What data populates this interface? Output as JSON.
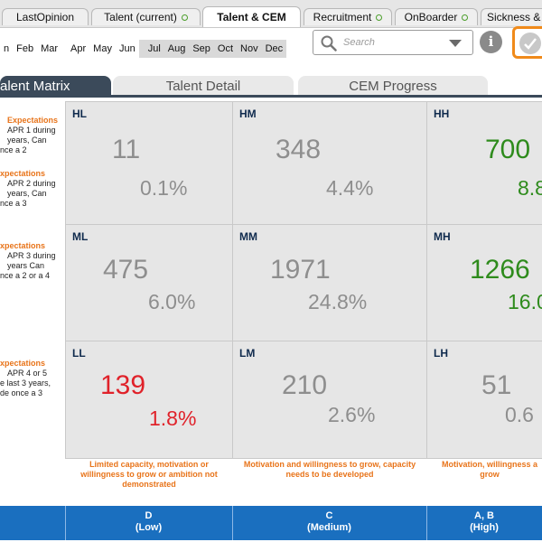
{
  "top_tabs": [
    {
      "label": "LastOpinion",
      "has_status": false
    },
    {
      "label": "Talent  (current)",
      "has_status": true
    },
    {
      "label": "Talent & CEM",
      "has_status": false,
      "active": true
    },
    {
      "label": "Recruitment",
      "has_status": true
    },
    {
      "label": "OnBoarder",
      "has_status": true
    },
    {
      "label": "Sickness &",
      "has_status": false
    }
  ],
  "months": [
    "n",
    "Feb",
    "Mar",
    "Apr",
    "May",
    "Jun",
    "Jul",
    "Aug",
    "Sep",
    "Oct",
    "Nov",
    "Dec"
  ],
  "selected_months": [
    "Jul",
    "Aug",
    "Sep",
    "Oct",
    "Nov",
    "Dec"
  ],
  "search": {
    "placeholder": "Search"
  },
  "icons": {
    "search": "search-icon",
    "dropdown": "chevron-down-icon",
    "info": "info-icon",
    "apply": "check-circle-icon"
  },
  "view_tabs": [
    {
      "label": "alent Matrix",
      "active": true
    },
    {
      "label": "Talent Detail",
      "active": false
    },
    {
      "label": "CEM Progress",
      "active": false
    }
  ],
  "row_labels": [
    {
      "heading": "Expectations",
      "lines": [
        "APR 1 during",
        "years, Can",
        "nce a 2"
      ],
      "heading2": "xpectations",
      "lines2": [
        "APR 2 during",
        "years, Can",
        "nce a 3"
      ]
    },
    {
      "heading": "xpectations",
      "lines": [
        "APR  3 during",
        "years Can",
        "nce a 2 or a 4"
      ]
    },
    {
      "heading": "xpectations",
      "lines": [
        "APR 4 or 5",
        "e last 3 years,",
        "de once a 3"
      ]
    }
  ],
  "cells": [
    {
      "code": "HL",
      "count": "11",
      "percent": "0.1%",
      "tone": "grey"
    },
    {
      "code": "HM",
      "count": "348",
      "percent": "4.4%",
      "tone": "grey"
    },
    {
      "code": "HH",
      "count": "700",
      "percent": "8.8",
      "tone": "green"
    },
    {
      "code": "ML",
      "count": "475",
      "percent": "6.0%",
      "tone": "grey"
    },
    {
      "code": "MM",
      "count": "1971",
      "percent": "24.8%",
      "tone": "grey"
    },
    {
      "code": "MH",
      "count": "1266",
      "percent": "16.0",
      "tone": "green"
    },
    {
      "code": "LL",
      "count": "139",
      "percent": "1.8%",
      "tone": "red"
    },
    {
      "code": "LM",
      "count": "210",
      "percent": "2.6%",
      "tone": "grey"
    },
    {
      "code": "LH",
      "count": "51",
      "percent": "0.6",
      "tone": "grey"
    }
  ],
  "column_descriptions": [
    "Limited capacity, motivation or willingness to grow or ambition not demonstrated",
    "Motivation and  willingness to grow, capacity needs to be developed",
    "Motivation, willingness  a grow"
  ],
  "footer_columns": [
    {
      "line1": "D",
      "line2": "(Low)"
    },
    {
      "line1": "C",
      "line2": "(Medium)"
    },
    {
      "line1": "A, B",
      "line2": "(High)"
    }
  ],
  "colors": {
    "accent_orange": "#f08a1a",
    "green_value": "#2e8b1c",
    "red_value": "#e0222a",
    "footer_blue": "#1a6fbf",
    "tab_dark": "#3b4a5a"
  }
}
